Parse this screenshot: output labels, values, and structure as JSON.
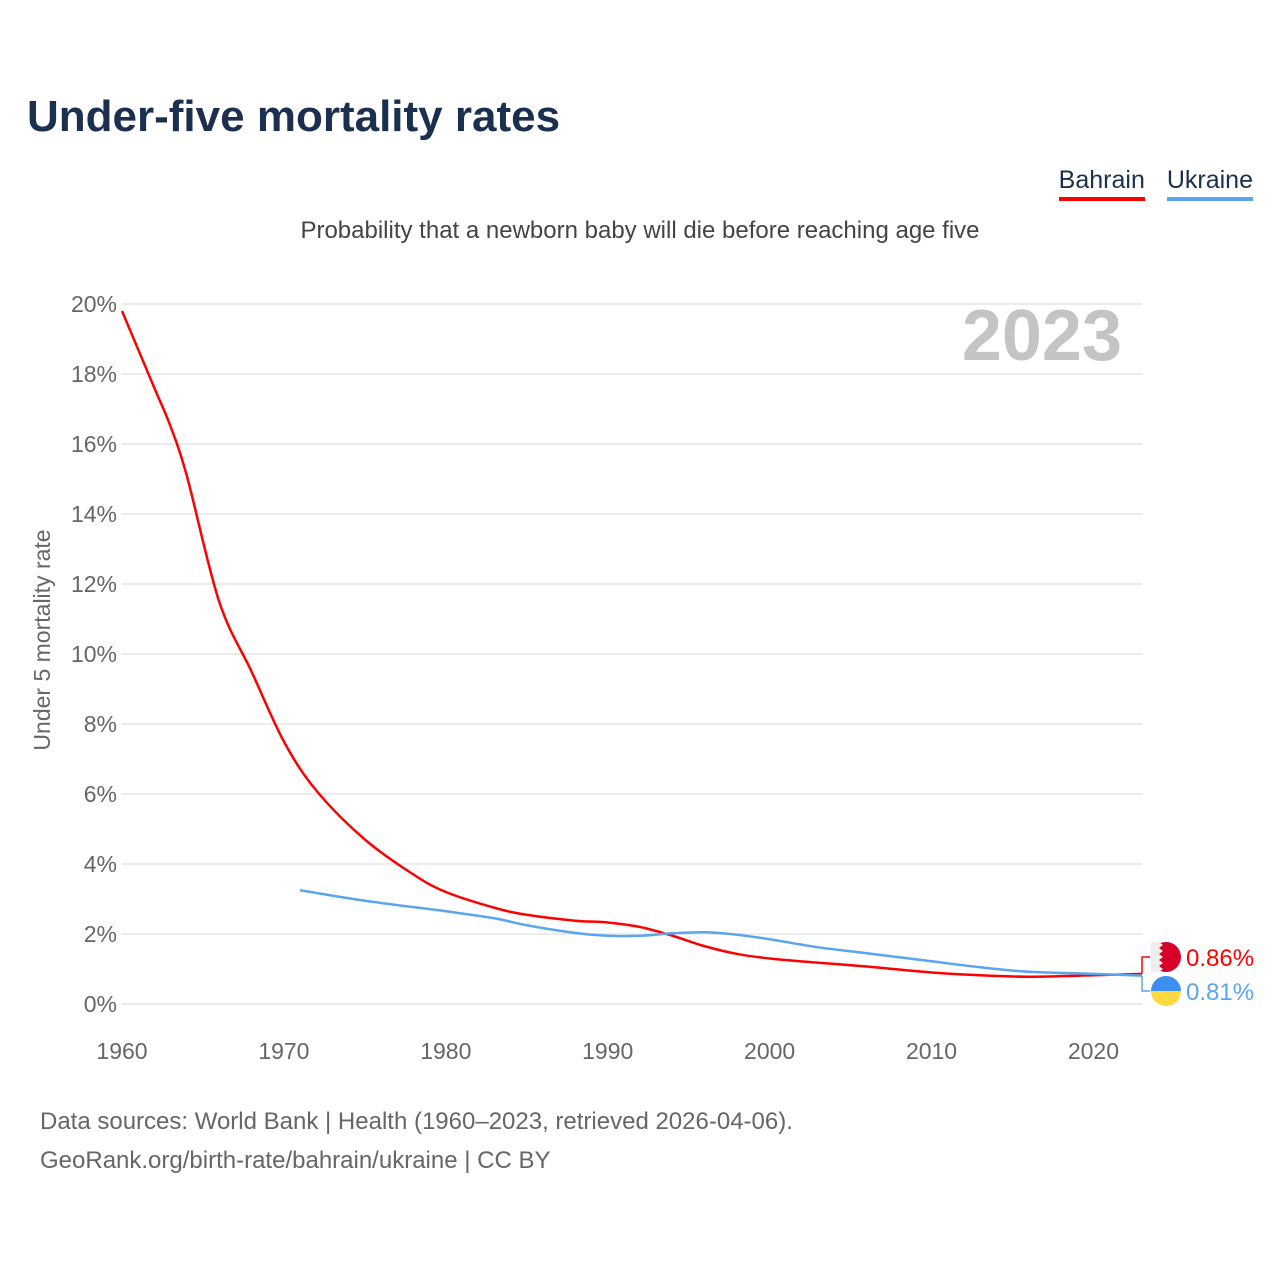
{
  "title": "Under-five mortality rates",
  "legend": [
    {
      "name": "Bahrain",
      "color": "#ff0000"
    },
    {
      "name": "Ukraine",
      "color": "#5aa5ef"
    }
  ],
  "subtitle": "Probability that a newborn baby will die before reaching age five",
  "year_label": "2023",
  "footer": {
    "line1": "Data sources: World Bank | Health (1960–2023, retrieved 2026-04-06).",
    "line2": "GeoRank.org/birth-rate/bahrain/ukraine | CC BY"
  },
  "chart_data": {
    "type": "line",
    "title": "Under-five mortality rates",
    "ylabel": "Under 5 mortality rate",
    "xlabel": "",
    "xlim": [
      1960,
      2023
    ],
    "ylim": [
      0,
      20
    ],
    "xticks": [
      1960,
      1970,
      1980,
      1990,
      2000,
      2010,
      2020
    ],
    "yticks": [
      0,
      2,
      4,
      6,
      8,
      10,
      12,
      14,
      16,
      18,
      20
    ],
    "ytick_labels": [
      "0%",
      "2%",
      "4%",
      "6%",
      "8%",
      "10%",
      "12%",
      "14%",
      "16%",
      "18%",
      "20%"
    ],
    "grid": true,
    "legend_position": "top-right",
    "series": [
      {
        "name": "Bahrain",
        "color": "#ff0000",
        "end_label": "0.86%",
        "flag": "bahrain-flag",
        "x": [
          1960,
          1962,
          1963,
          1964,
          1966,
          1968,
          1970,
          1972,
          1975,
          1978,
          1980,
          1983,
          1985,
          1988,
          1990,
          1992,
          1994,
          1996,
          1998,
          2000,
          2003,
          2006,
          2010,
          2013,
          2016,
          2020,
          2023
        ],
        "y": [
          19.8,
          17.6,
          16.5,
          15.1,
          11.5,
          9.5,
          7.5,
          6.1,
          4.7,
          3.7,
          3.2,
          2.75,
          2.55,
          2.38,
          2.33,
          2.2,
          1.95,
          1.65,
          1.43,
          1.3,
          1.18,
          1.07,
          0.9,
          0.82,
          0.78,
          0.82,
          0.86
        ]
      },
      {
        "name": "Ukraine",
        "color": "#5aa5ef",
        "end_label": "0.81%",
        "flag": "ukraine-flag",
        "x": [
          1971,
          1975,
          1980,
          1983,
          1985,
          1988,
          1990,
          1992,
          1994,
          1996,
          1998,
          2000,
          2003,
          2006,
          2010,
          2013,
          2016,
          2020,
          2023
        ],
        "y": [
          3.25,
          2.95,
          2.65,
          2.45,
          2.25,
          2.03,
          1.95,
          1.95,
          2.02,
          2.05,
          1.98,
          1.85,
          1.62,
          1.45,
          1.22,
          1.05,
          0.92,
          0.86,
          0.81
        ]
      }
    ]
  }
}
